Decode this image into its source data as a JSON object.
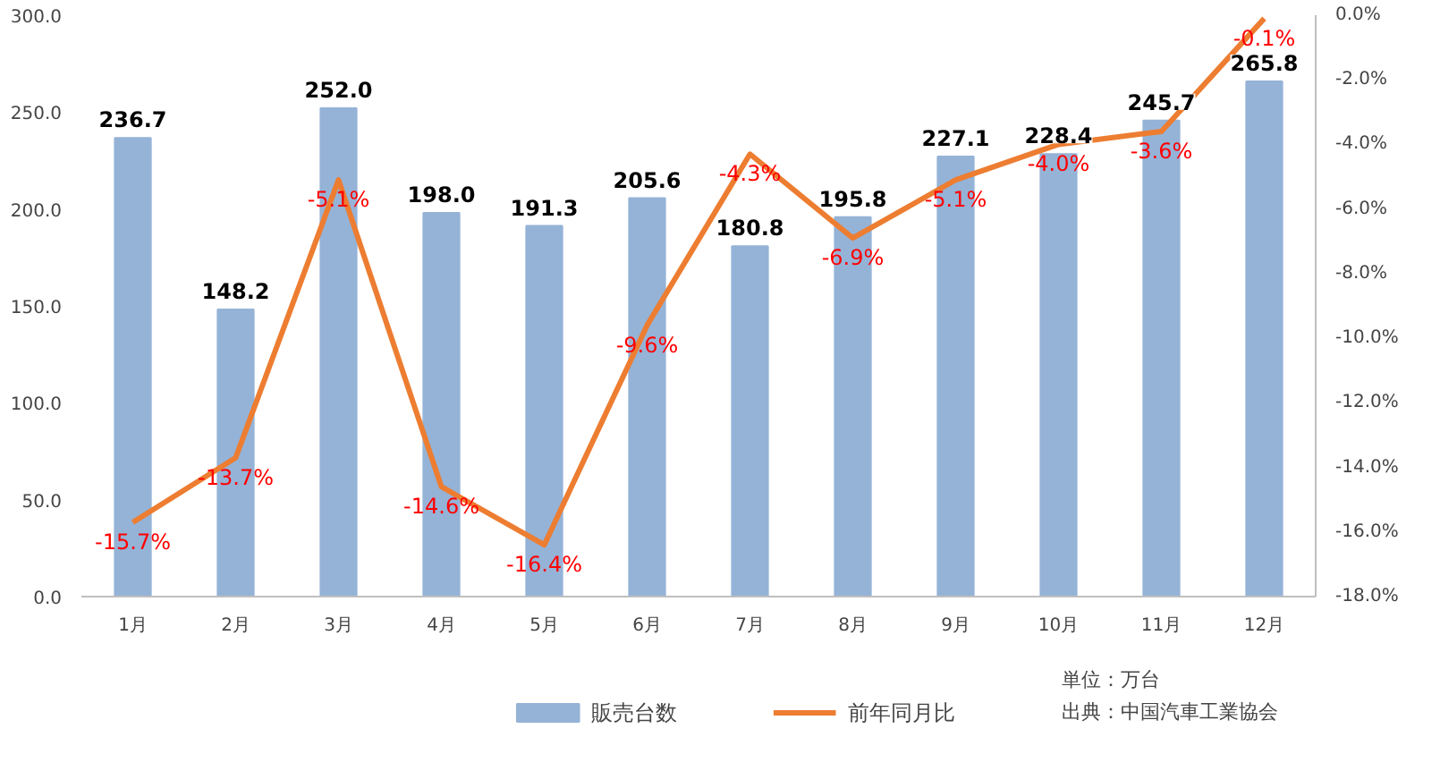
{
  "chart_data": {
    "type": "bar",
    "categories": [
      "1月",
      "2月",
      "3月",
      "4月",
      "5月",
      "6月",
      "7月",
      "8月",
      "9月",
      "10月",
      "11月",
      "12月"
    ],
    "series": [
      {
        "name": "販売台数",
        "color": "#95b3d7",
        "values": [
          236.7,
          148.2,
          252.0,
          198.0,
          191.3,
          205.6,
          180.8,
          195.8,
          227.1,
          228.4,
          245.7,
          265.8
        ],
        "value_labels": [
          "236.7",
          "148.2",
          "252.0",
          "198.0",
          "191.3",
          "205.6",
          "180.8",
          "195.8",
          "227.1",
          "228.4",
          "245.7",
          "265.8"
        ]
      },
      {
        "name": "前年同月比",
        "type": "line",
        "axis": "y2",
        "color": "#ed7d31",
        "values": [
          -15.7,
          -13.7,
          -5.1,
          -14.6,
          -16.4,
          -9.6,
          -4.3,
          -6.9,
          -5.1,
          -4.0,
          -3.6,
          -0.1
        ],
        "value_labels": [
          "-15.7%",
          "-13.7%",
          "-5.1%",
          "-14.6%",
          "-16.4%",
          "-9.6%",
          "-4.3%",
          "-6.9%",
          "-5.1%",
          "-4.0%",
          "-3.6%",
          "-0.1%"
        ]
      }
    ],
    "ylim": [
      0,
      300
    ],
    "yticks": [
      {
        "value": 0,
        "label": "0.0"
      },
      {
        "value": 50,
        "label": "50.0"
      },
      {
        "value": 100,
        "label": "100.0"
      },
      {
        "value": 150,
        "label": "150.0"
      },
      {
        "value": 200,
        "label": "200.0"
      },
      {
        "value": 250,
        "label": "250.0"
      },
      {
        "value": 300,
        "label": "300.0"
      }
    ],
    "y2lim": [
      -18,
      0
    ],
    "y2ticks": [
      {
        "value": -18,
        "label": "-18.0%"
      },
      {
        "value": -16,
        "label": "-16.0%"
      },
      {
        "value": -14,
        "label": "-14.0%"
      },
      {
        "value": -12,
        "label": "-12.0%"
      },
      {
        "value": -10,
        "label": "-10.0%"
      },
      {
        "value": -8,
        "label": "-8.0%"
      },
      {
        "value": -6,
        "label": "-6.0%"
      },
      {
        "value": -4,
        "label": "-4.0%"
      },
      {
        "value": -2,
        "label": "-2.0%"
      },
      {
        "value": 0,
        "label": "0.0%"
      }
    ],
    "legend": "bottom",
    "grid": false,
    "marker": "none",
    "annotations": [
      "単位：万台",
      "出典：中国汽車工業協会"
    ]
  }
}
